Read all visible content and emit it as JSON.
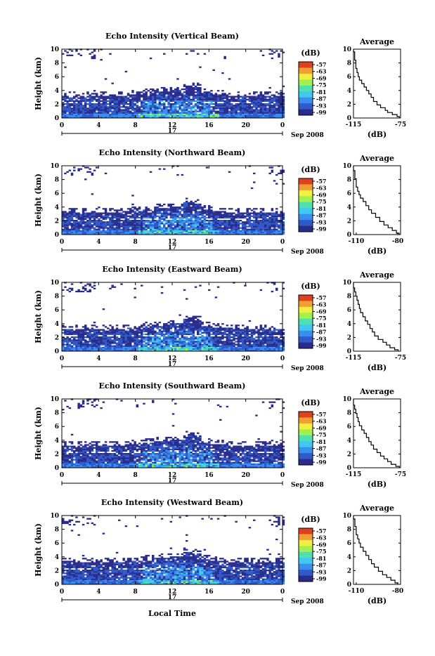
{
  "chart_data": [
    {
      "type": "heatmap",
      "title": "Echo Intensity (Vertical Beam)",
      "ylabel": "Height (km)",
      "x_ticks": [
        "0",
        "4",
        "8",
        "12",
        "16",
        "20",
        "0"
      ],
      "y_ticks": [
        "0",
        "2",
        "4",
        "6",
        "8",
        "10"
      ],
      "xlim": [
        0,
        24
      ],
      "ylim": [
        0,
        10
      ],
      "date_mid": "17",
      "date_label": "Sep 2008",
      "colorbar": {
        "unit": "(dB)",
        "ticks": [
          "-57",
          "-63",
          "-69",
          "-75",
          "-81",
          "-87",
          "-93",
          "-99"
        ]
      },
      "average": {
        "title": "Average",
        "xlabel": "(dB)",
        "x_ticks": [
          "-115",
          "-75"
        ],
        "xlim": [
          -115,
          -75
        ],
        "y_ticks": [
          "0",
          "2",
          "4",
          "6",
          "8",
          "10"
        ]
      },
      "colorscale": [
        "#2a2c8c",
        "#2f5ac8",
        "#3b8ef0",
        "#40c8f0",
        "#50e0b0",
        "#a0f050",
        "#f0f040",
        "#f0a030",
        "#e04020"
      ],
      "profile": [
        [
          -76,
          0.2
        ],
        [
          -78,
          0.5
        ],
        [
          -82,
          0.8
        ],
        [
          -86,
          1.1
        ],
        [
          -88,
          1.5
        ],
        [
          -92,
          1.9
        ],
        [
          -95,
          2.4
        ],
        [
          -98,
          3.0
        ],
        [
          -100,
          3.5
        ],
        [
          -102,
          4.0
        ],
        [
          -104,
          4.5
        ],
        [
          -106,
          5.0
        ],
        [
          -108,
          5.5
        ],
        [
          -110,
          6.0
        ],
        [
          -111,
          6.6
        ],
        [
          -112,
          7.2
        ],
        [
          -113,
          7.8
        ],
        [
          -113,
          8.4
        ],
        [
          -114,
          9.0
        ],
        [
          -114,
          9.6
        ],
        [
          -115,
          10.0
        ]
      ]
    },
    {
      "type": "heatmap",
      "title": "Echo Intensity (Northward Beam)",
      "ylabel": "Height (km)",
      "x_ticks": [
        "0",
        "4",
        "8",
        "12",
        "16",
        "20",
        "0"
      ],
      "y_ticks": [
        "0",
        "2",
        "4",
        "6",
        "8",
        "10"
      ],
      "xlim": [
        0,
        24
      ],
      "ylim": [
        0,
        10
      ],
      "date_mid": "17",
      "date_label": "Sep 2008",
      "colorbar": {
        "unit": "(dB)",
        "ticks": [
          "-57",
          "-63",
          "-69",
          "-75",
          "-81",
          "-87",
          "-93",
          "-99"
        ]
      },
      "average": {
        "title": "Average",
        "xlabel": "(dB)",
        "x_ticks": [
          "-110",
          "-80"
        ],
        "xlim": [
          -112,
          -78
        ],
        "y_ticks": [
          "0",
          "2",
          "4",
          "6",
          "8",
          "10"
        ]
      },
      "colorscale": [
        "#2a2c8c",
        "#2f5ac8",
        "#3b8ef0",
        "#40c8f0",
        "#50e0b0",
        "#a0f050",
        "#f0f040",
        "#f0a030",
        "#e04020"
      ],
      "profile": [
        [
          -79,
          0.2
        ],
        [
          -81,
          0.6
        ],
        [
          -84,
          1.0
        ],
        [
          -87,
          1.4
        ],
        [
          -90,
          1.9
        ],
        [
          -93,
          2.5
        ],
        [
          -96,
          3.1
        ],
        [
          -99,
          3.6
        ],
        [
          -101,
          4.2
        ],
        [
          -103,
          4.8
        ],
        [
          -105,
          5.3
        ],
        [
          -107,
          5.8
        ],
        [
          -108,
          6.3
        ],
        [
          -109,
          6.9
        ],
        [
          -110,
          7.5
        ],
        [
          -110,
          8.1
        ],
        [
          -111,
          8.7
        ],
        [
          -111,
          9.3
        ],
        [
          -112,
          10.0
        ]
      ]
    },
    {
      "type": "heatmap",
      "title": "Echo Intensity (Eastward Beam)",
      "ylabel": "Height (km)",
      "x_ticks": [
        "0",
        "4",
        "8",
        "12",
        "16",
        "20",
        "0"
      ],
      "y_ticks": [
        "0",
        "2",
        "4",
        "6",
        "8",
        "10"
      ],
      "xlim": [
        0,
        24
      ],
      "ylim": [
        0,
        10
      ],
      "date_mid": "17",
      "date_label": "Sep 2008",
      "colorbar": {
        "unit": "(dB)",
        "ticks": [
          "-57",
          "-63",
          "-69",
          "-75",
          "-81",
          "-87",
          "-93",
          "-99"
        ]
      },
      "average": {
        "title": "Average",
        "xlabel": "(dB)",
        "x_ticks": [
          "-115",
          "-75"
        ],
        "xlim": [
          -115,
          -75
        ],
        "y_ticks": [
          "0",
          "2",
          "4",
          "6",
          "8",
          "10"
        ]
      },
      "colorscale": [
        "#2a2c8c",
        "#2f5ac8",
        "#3b8ef0",
        "#40c8f0",
        "#50e0b0",
        "#a0f050",
        "#f0f040",
        "#f0a030",
        "#e04020"
      ],
      "profile": [
        [
          -77,
          0.2
        ],
        [
          -80,
          0.5
        ],
        [
          -84,
          0.9
        ],
        [
          -87,
          1.3
        ],
        [
          -90,
          1.7
        ],
        [
          -94,
          2.2
        ],
        [
          -97,
          2.8
        ],
        [
          -99,
          3.3
        ],
        [
          -101,
          3.9
        ],
        [
          -103,
          4.4
        ],
        [
          -105,
          5.0
        ],
        [
          -107,
          5.6
        ],
        [
          -109,
          6.2
        ],
        [
          -110,
          6.8
        ],
        [
          -111,
          7.4
        ],
        [
          -112,
          8.0
        ],
        [
          -113,
          8.6
        ],
        [
          -114,
          9.2
        ],
        [
          -115,
          10.0
        ]
      ]
    },
    {
      "type": "heatmap",
      "title": "Echo Intensity (Southward Beam)",
      "ylabel": "Height (km)",
      "x_ticks": [
        "0",
        "4",
        "8",
        "12",
        "16",
        "20",
        "0"
      ],
      "y_ticks": [
        "0",
        "2",
        "4",
        "6",
        "8",
        "10"
      ],
      "xlim": [
        0,
        24
      ],
      "ylim": [
        0,
        10
      ],
      "date_mid": "17",
      "date_label": "Sep 2008",
      "colorbar": {
        "unit": "(dB)",
        "ticks": [
          "-57",
          "-63",
          "-69",
          "-75",
          "-81",
          "-87",
          "-93",
          "-99"
        ]
      },
      "average": {
        "title": "Average",
        "xlabel": "(dB)",
        "x_ticks": [
          "-115",
          "-75"
        ],
        "xlim": [
          -115,
          -75
        ],
        "y_ticks": [
          "0",
          "2",
          "4",
          "6",
          "8",
          "10"
        ]
      },
      "colorscale": [
        "#2a2c8c",
        "#2f5ac8",
        "#3b8ef0",
        "#40c8f0",
        "#50e0b0",
        "#a0f050",
        "#f0f040",
        "#f0a030",
        "#e04020"
      ],
      "profile": [
        [
          -76,
          0.2
        ],
        [
          -79,
          0.5
        ],
        [
          -83,
          0.9
        ],
        [
          -86,
          1.3
        ],
        [
          -89,
          1.7
        ],
        [
          -92,
          2.2
        ],
        [
          -95,
          2.7
        ],
        [
          -98,
          3.3
        ],
        [
          -100,
          3.8
        ],
        [
          -102,
          4.4
        ],
        [
          -104,
          5.0
        ],
        [
          -106,
          5.5
        ],
        [
          -108,
          6.1
        ],
        [
          -110,
          6.7
        ],
        [
          -111,
          7.3
        ],
        [
          -112,
          7.9
        ],
        [
          -113,
          8.5
        ],
        [
          -114,
          9.1
        ],
        [
          -115,
          10.0
        ]
      ]
    },
    {
      "type": "heatmap",
      "title": "Echo Intensity (Westward Beam)",
      "ylabel": "Height (km)",
      "xlabel": "Local Time",
      "x_ticks": [
        "0",
        "4",
        "8",
        "12",
        "16",
        "20",
        "0"
      ],
      "y_ticks": [
        "0",
        "2",
        "4",
        "6",
        "8",
        "10"
      ],
      "xlim": [
        0,
        24
      ],
      "ylim": [
        0,
        10
      ],
      "date_mid": "17",
      "date_label": "Sep 2008",
      "colorbar": {
        "unit": "(dB)",
        "ticks": [
          "-57",
          "-63",
          "-69",
          "-75",
          "-81",
          "-87",
          "-93",
          "-99"
        ]
      },
      "average": {
        "title": "Average",
        "xlabel": "(dB)",
        "x_ticks": [
          "-110",
          "-80"
        ],
        "xlim": [
          -112,
          -78
        ],
        "y_ticks": [
          "0",
          "2",
          "4",
          "6",
          "8",
          "10"
        ]
      },
      "colorscale": [
        "#2a2c8c",
        "#2f5ac8",
        "#3b8ef0",
        "#40c8f0",
        "#50e0b0",
        "#a0f050",
        "#f0f040",
        "#f0a030",
        "#e04020"
      ],
      "profile": [
        [
          -80,
          0.2
        ],
        [
          -82,
          0.6
        ],
        [
          -85,
          1.0
        ],
        [
          -88,
          1.4
        ],
        [
          -91,
          1.9
        ],
        [
          -94,
          2.5
        ],
        [
          -97,
          3.0
        ],
        [
          -99,
          3.6
        ],
        [
          -101,
          4.2
        ],
        [
          -103,
          4.8
        ],
        [
          -105,
          5.4
        ],
        [
          -107,
          6.0
        ],
        [
          -108,
          6.6
        ],
        [
          -109,
          7.2
        ],
        [
          -110,
          7.8
        ],
        [
          -110,
          8.4
        ],
        [
          -111,
          9.0
        ],
        [
          -111,
          9.5
        ],
        [
          -112,
          10.0
        ]
      ]
    }
  ]
}
